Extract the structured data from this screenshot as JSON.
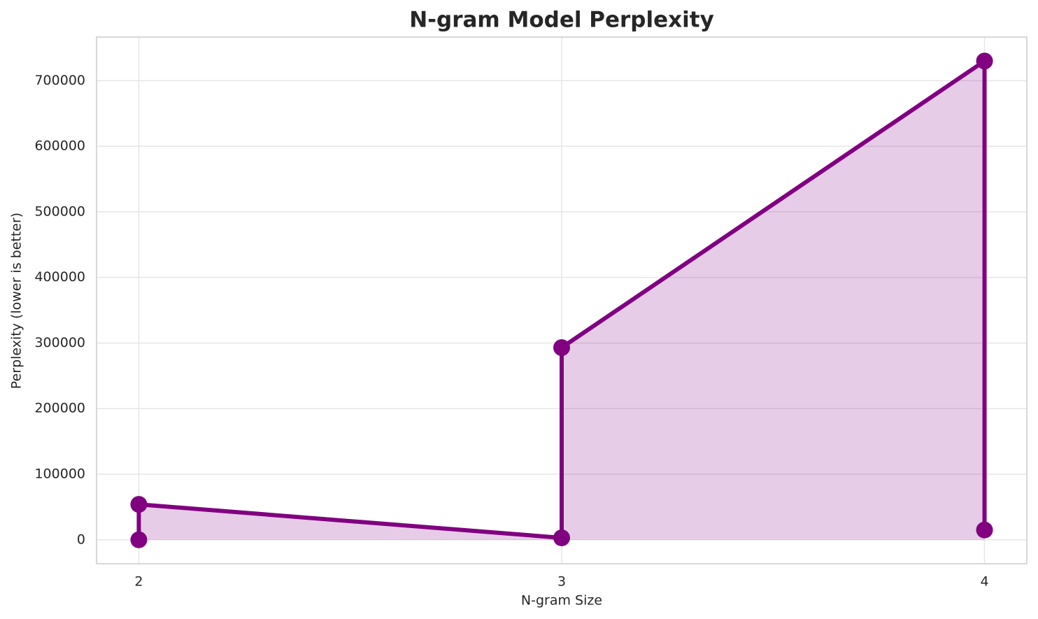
{
  "chart_data": {
    "type": "line",
    "title": "N-gram Model Perplexity",
    "x_label": "N-gram Size",
    "y_label": "Perplexity (lower is better)",
    "x": [
      2,
      2,
      3,
      3,
      4,
      4
    ],
    "series": [
      {
        "color": "#800080",
        "values": [
          0,
          54000,
          3000,
          293000,
          730000,
          15000
        ]
      }
    ],
    "fill": true,
    "xlim": [
      1.9,
      4.1
    ],
    "xticks": [
      2,
      3,
      4
    ],
    "ylim": [
      -36500,
      766500
    ],
    "yticks": [
      0,
      100000,
      200000,
      300000,
      400000,
      500000,
      600000,
      700000
    ],
    "grid": true
  }
}
